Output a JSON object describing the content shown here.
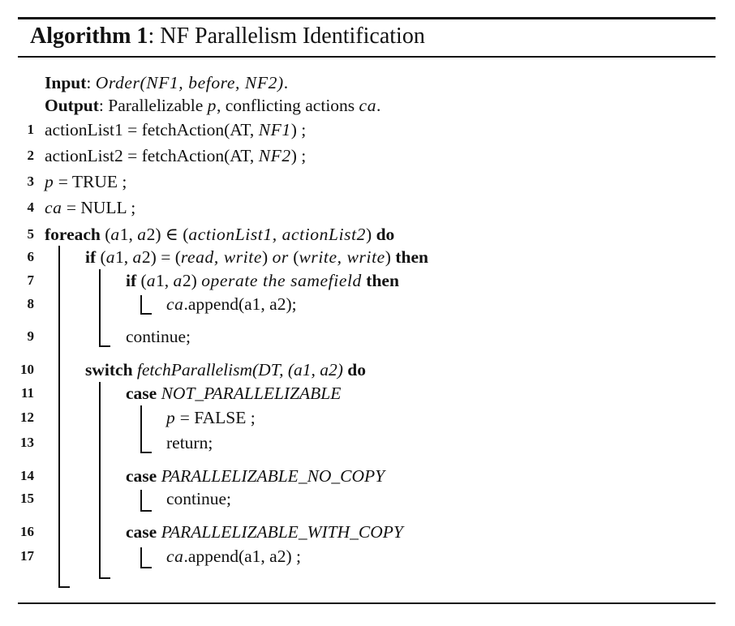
{
  "caption": {
    "label": "Algorithm 1",
    "sep": ":",
    "title": "NF Parallelism Identification"
  },
  "io": {
    "input_kw": "Input",
    "input_text_a": ": ",
    "input_math": "Order(NF1, before, NF2)",
    "input_text_b": ".",
    "output_kw": "Output",
    "output_text_a": ": Parallelizable ",
    "output_p": "p",
    "output_text_b": ", conflicting actions ",
    "output_ca": "ca",
    "output_text_c": "."
  },
  "lines": [
    {
      "num": "1",
      "pre": "actionList1 = fetchAction(AT, ",
      "math": "NF1",
      "post": ") ;"
    },
    {
      "num": "2",
      "pre": "actionList2 = fetchAction(AT, ",
      "math": "NF2",
      "post": ") ;"
    },
    {
      "num": "3",
      "math": "p",
      "post": " = TRUE ;"
    },
    {
      "num": "4",
      "math": "ca",
      "post": " = NULL ;"
    },
    {
      "num": "5",
      "kw": "foreach",
      "mid": " (",
      "math1": "a",
      "mid2": "1, ",
      "math2": "a",
      "mid3": "2) ∈ (",
      "math3": "actionList1, actionList2",
      "mid4": ") ",
      "kw2": "do"
    },
    {
      "num": "6",
      "kw": "if",
      "mid": " (",
      "math1": "a",
      "mid2": "1, ",
      "math2": "a",
      "mid3": "2) = (",
      "math3": "read, write",
      "mid4": ") ",
      "math4": "or",
      "mid5": " (",
      "math5": "write, write",
      "mid6": ") ",
      "kw2": "then"
    },
    {
      "num": "7",
      "kw": "if",
      "mid": " (",
      "math1": "a",
      "mid2": "1, ",
      "math2": "a",
      "mid3": "2) ",
      "math3": "operate the samefield",
      "mid4": " ",
      "kw2": "then"
    },
    {
      "num": "8",
      "math": "ca",
      "post": ".append(a1, a2);"
    },
    {
      "num": "9",
      "text": "continue;"
    },
    {
      "num": "10",
      "kw": "switch",
      "mid": " ",
      "it": "fetchParallelism(DT, (a1, a2)",
      "mid2": " ",
      "kw2": "do"
    },
    {
      "num": "11",
      "kw": "case",
      "mid": " ",
      "it": "NOT_PARALLELIZABLE"
    },
    {
      "num": "12",
      "math": "p",
      "post": " = FALSE ;"
    },
    {
      "num": "13",
      "text": "return;"
    },
    {
      "num": "14",
      "kw": "case",
      "mid": " ",
      "it": "PARALLELIZABLE_NO_COPY"
    },
    {
      "num": "15",
      "text": "continue;"
    },
    {
      "num": "16",
      "kw": "case",
      "mid": " ",
      "it": "PARALLELIZABLE_WITH_COPY"
    },
    {
      "num": "17",
      "math": "ca",
      "post": ".append(a1, a2) ;"
    }
  ]
}
